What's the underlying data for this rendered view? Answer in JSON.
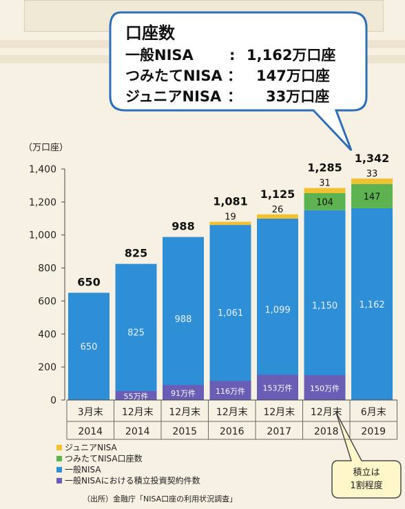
{
  "callout": {
    "title": "口座数",
    "lines": [
      {
        "label": "一般NISA",
        "sep": "　:",
        "value": "1,162万口座"
      },
      {
        "label": "つみたてNISA",
        "sep": "：",
        "value": "147万口座"
      },
      {
        "label": "ジュニアNISA",
        "sep": "：",
        "value": "33万口座"
      }
    ]
  },
  "units_label": "（万口座）",
  "note": {
    "line1": "積立は",
    "line2": "1割程度"
  },
  "source": "（出所）金融庁「NISA口座の利用状況調査」",
  "legend": [
    {
      "label": "ジュニアNISA",
      "color": "#f2c131"
    },
    {
      "label": "つみたてNISA口座数",
      "color": "#5cb350"
    },
    {
      "label": "一般NISA",
      "color": "#2f8fd6"
    },
    {
      "label": "一般NISAにおける積立投資契約件数",
      "color": "#6a5db5"
    }
  ],
  "chart_data": {
    "type": "bar",
    "stacked": true,
    "categories": [
      {
        "month": "3月末",
        "year": "2014"
      },
      {
        "month": "12月末",
        "year": "2014"
      },
      {
        "month": "12月末",
        "year": "2015"
      },
      {
        "month": "12月末",
        "year": "2016"
      },
      {
        "month": "12月末",
        "year": "2017"
      },
      {
        "month": "12月末",
        "year": "2018"
      },
      {
        "month": "6月末",
        "year": "2019"
      }
    ],
    "series": [
      {
        "name": "一般NISA",
        "color": "#2f8fd6",
        "values": [
          650,
          825,
          988,
          1061,
          1099,
          1150,
          1162
        ],
        "labels": [
          "650",
          "825",
          "988",
          "1,061",
          "1,099",
          "1,150",
          "1,162"
        ]
      },
      {
        "name": "つみたてNISA口座数",
        "color": "#5cb350",
        "values": [
          0,
          0,
          0,
          0,
          0,
          104,
          147
        ],
        "labels": [
          "",
          "",
          "",
          "",
          "",
          "104",
          "147"
        ]
      },
      {
        "name": "ジュニアNISA",
        "color": "#f2c131",
        "values": [
          0,
          0,
          0,
          19,
          26,
          31,
          33
        ],
        "labels": [
          "",
          "",
          "",
          "19",
          "26",
          "31",
          "33"
        ]
      }
    ],
    "overlay": {
      "name": "一般NISAにおける積立投資契約件数",
      "color": "#6a5db5",
      "values": [
        0,
        55,
        91,
        116,
        153,
        150,
        0
      ],
      "labels": [
        "",
        "55万件",
        "91万件",
        "116万件",
        "153万件",
        "150万件",
        ""
      ]
    },
    "totals": [
      "650",
      "825",
      "988",
      "1,081",
      "1,125",
      "1,285",
      "1,342"
    ],
    "ylim": [
      0,
      1400
    ],
    "yticks": [
      0,
      200,
      400,
      600,
      800,
      1000,
      1200,
      1400
    ],
    "ytick_labels": [
      "0",
      "200",
      "400",
      "600",
      "800",
      "1,000",
      "1,200",
      "1,400"
    ],
    "ylabel": "（万口座）"
  }
}
